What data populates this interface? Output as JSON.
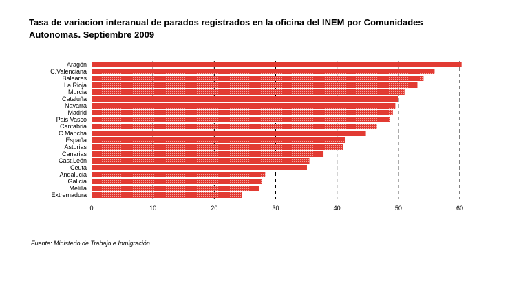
{
  "title": "Tasa de variacion interanual de parados registrados en la oficina del INEM por Comunidades Autonomas. Septiembre 2009",
  "source": "Fuente: Ministerio de Trabajo e Inmigración",
  "colors": {
    "bar": "#e23b33",
    "bar_dots": "#f3a39f",
    "grid": "#000000"
  },
  "chart_data": {
    "type": "bar",
    "orientation": "horizontal",
    "title": "Tasa de variacion interanual de parados registrados en la oficina del INEM por Comunidades Autonomas. Septiembre 2009",
    "categories": [
      "Aragón",
      "C.Valenciana",
      "Baleares",
      "La Rioja",
      "Murcia",
      "Cataluña",
      "Navarra",
      "Madrid",
      "Pais Vasco",
      "Cantabria",
      "C.Mancha",
      "España",
      "Asturias",
      "Canarias",
      "Cast.León",
      "Ceuta",
      "Andalucia",
      "Galicia",
      "Melilla",
      "Extremadura"
    ],
    "values": [
      60.3,
      55.9,
      54.1,
      53.1,
      51.0,
      50.0,
      49.5,
      49.1,
      48.6,
      46.5,
      44.7,
      41.3,
      41.0,
      37.8,
      35.5,
      35.1,
      28.3,
      27.8,
      27.3,
      24.5
    ],
    "xlim": [
      0,
      60
    ],
    "xticks": [
      0,
      10,
      20,
      30,
      40,
      50,
      60
    ],
    "grid": "vertical dashed"
  }
}
